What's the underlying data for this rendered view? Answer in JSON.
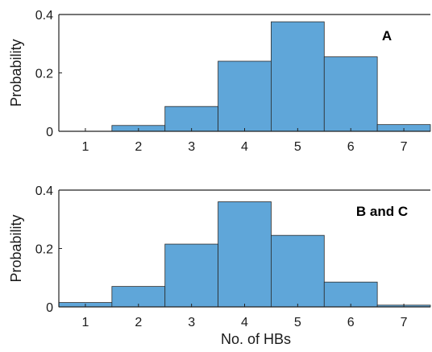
{
  "chart_data": [
    {
      "type": "bar",
      "panel_label": "A",
      "categories": [
        "1",
        "2",
        "3",
        "4",
        "5",
        "6",
        "7"
      ],
      "values": [
        0.0,
        0.02,
        0.085,
        0.24,
        0.375,
        0.255,
        0.023
      ],
      "ylabel": "Probability",
      "xlabel": "",
      "ylim": [
        0,
        0.4
      ],
      "yticks": [
        "0",
        "0.2",
        "0.4"
      ],
      "xlim": [
        0.5,
        7.5
      ],
      "bar_color": "#5fa6d9",
      "grid": false
    },
    {
      "type": "bar",
      "panel_label": "B and C",
      "categories": [
        "1",
        "2",
        "3",
        "4",
        "5",
        "6",
        "7"
      ],
      "values": [
        0.015,
        0.07,
        0.215,
        0.36,
        0.245,
        0.085,
        0.006
      ],
      "ylabel": "Probability",
      "xlabel": "No. of HBs",
      "ylim": [
        0,
        0.4
      ],
      "yticks": [
        "0",
        "0.2",
        "0.4"
      ],
      "xlim": [
        0.5,
        7.5
      ],
      "bar_color": "#5fa6d9",
      "grid": false
    }
  ]
}
